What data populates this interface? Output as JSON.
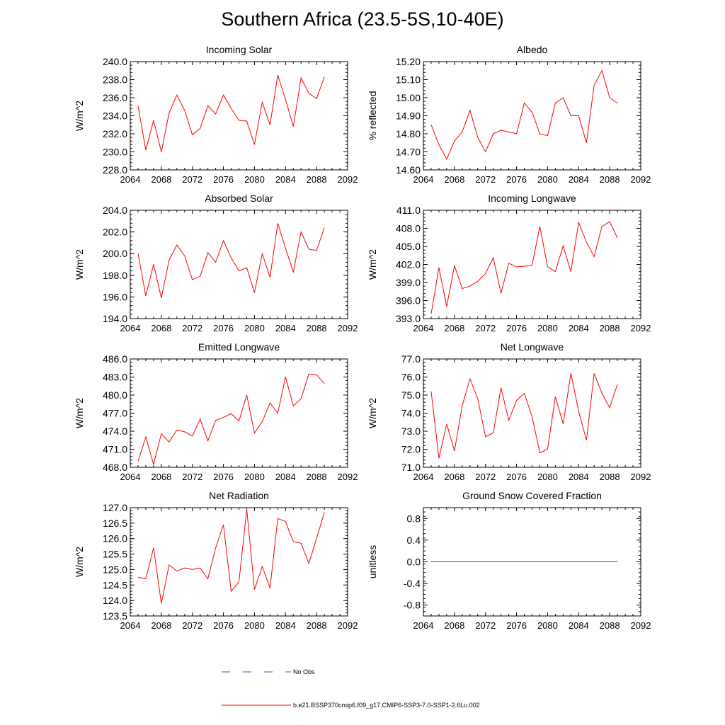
{
  "figure": {
    "title": "Southern Africa (23.5-5S,10-40E)",
    "series_color": "#ff0000",
    "legend": [
      {
        "label": "No Obs",
        "style": "dashed",
        "color": "#4b4bb4"
      },
      {
        "label": "b.e21.BSSP370cmip6.f09_g17.CMIP6-SSP3-7.0-SSP1-2.6Lu.002",
        "style": "solid",
        "color": "#ff0000"
      }
    ]
  },
  "chart_data": [
    {
      "type": "line",
      "title": "Incoming Solar",
      "xlabel": "",
      "ylabel": "W/m^2",
      "xlim": [
        2064,
        2092
      ],
      "xticks": [
        2064,
        2068,
        2072,
        2076,
        2080,
        2084,
        2088,
        2092
      ],
      "ylim": [
        228,
        240
      ],
      "yticks": [
        228,
        230,
        232,
        234,
        236,
        238,
        240
      ],
      "ytick_decimals": 1,
      "x": [
        2065,
        2066,
        2067,
        2068,
        2069,
        2070,
        2071,
        2072,
        2073,
        2074,
        2075,
        2076,
        2077,
        2078,
        2079,
        2080,
        2081,
        2082,
        2083,
        2084,
        2085,
        2086,
        2087,
        2088,
        2089
      ],
      "series": [
        {
          "values": [
            235.1,
            230.2,
            233.5,
            230.0,
            234.3,
            236.3,
            234.6,
            231.9,
            232.6,
            235.1,
            234.2,
            236.3,
            234.8,
            233.5,
            233.4,
            230.8,
            235.5,
            233.0,
            238.5,
            235.8,
            232.8,
            238.2,
            236.5,
            235.9,
            238.3
          ]
        }
      ]
    },
    {
      "type": "line",
      "title": "Albedo",
      "xlabel": "",
      "ylabel": "% reflected",
      "xlim": [
        2064,
        2092
      ],
      "xticks": [
        2064,
        2068,
        2072,
        2076,
        2080,
        2084,
        2088,
        2092
      ],
      "ylim": [
        14.6,
        15.2
      ],
      "yticks": [
        14.6,
        14.7,
        14.8,
        14.9,
        15.0,
        15.1,
        15.2
      ],
      "ytick_decimals": 2,
      "x": [
        2065,
        2066,
        2067,
        2068,
        2069,
        2070,
        2071,
        2072,
        2073,
        2074,
        2075,
        2076,
        2077,
        2078,
        2079,
        2080,
        2081,
        2082,
        2083,
        2084,
        2085,
        2086,
        2087,
        2088,
        2089
      ],
      "series": [
        {
          "values": [
            14.85,
            14.74,
            14.66,
            14.76,
            14.81,
            14.93,
            14.78,
            14.7,
            14.8,
            14.82,
            14.81,
            14.8,
            14.97,
            14.92,
            14.8,
            14.79,
            14.97,
            15.0,
            14.9,
            14.9,
            14.75,
            15.07,
            15.15,
            15.0,
            14.97
          ]
        }
      ]
    },
    {
      "type": "line",
      "title": "Absorbed Solar",
      "xlabel": "",
      "ylabel": "W/m^2",
      "xlim": [
        2064,
        2092
      ],
      "xticks": [
        2064,
        2068,
        2072,
        2076,
        2080,
        2084,
        2088,
        2092
      ],
      "ylim": [
        194,
        204
      ],
      "yticks": [
        194,
        196,
        198,
        200,
        202,
        204
      ],
      "ytick_decimals": 1,
      "x": [
        2065,
        2066,
        2067,
        2068,
        2069,
        2070,
        2071,
        2072,
        2073,
        2074,
        2075,
        2076,
        2077,
        2078,
        2079,
        2080,
        2081,
        2082,
        2083,
        2084,
        2085,
        2086,
        2087,
        2088,
        2089
      ],
      "series": [
        {
          "values": [
            200.0,
            196.1,
            199.0,
            195.9,
            199.4,
            200.8,
            199.8,
            197.6,
            197.9,
            200.1,
            199.2,
            201.2,
            199.6,
            198.4,
            198.7,
            196.4,
            200.0,
            197.8,
            202.8,
            200.5,
            198.3,
            202.0,
            200.4,
            200.3,
            202.4
          ]
        }
      ]
    },
    {
      "type": "line",
      "title": "Incoming Longwave",
      "xlabel": "",
      "ylabel": "W/m^2",
      "xlim": [
        2064,
        2092
      ],
      "xticks": [
        2064,
        2068,
        2072,
        2076,
        2080,
        2084,
        2088,
        2092
      ],
      "ylim": [
        393,
        411
      ],
      "yticks": [
        393,
        396,
        399,
        402,
        405,
        408,
        411
      ],
      "ytick_decimals": 1,
      "x": [
        2065,
        2066,
        2067,
        2068,
        2069,
        2070,
        2071,
        2072,
        2073,
        2074,
        2075,
        2076,
        2077,
        2078,
        2079,
        2080,
        2081,
        2082,
        2083,
        2084,
        2085,
        2086,
        2087,
        2088,
        2089
      ],
      "series": [
        {
          "values": [
            393.8,
            401.5,
            395.0,
            401.8,
            398.0,
            398.4,
            399.2,
            400.5,
            403.1,
            397.2,
            402.2,
            401.6,
            401.7,
            401.9,
            408.3,
            401.6,
            400.8,
            405.1,
            400.8,
            409.0,
            405.7,
            403.3,
            408.3,
            409.1,
            406.4
          ]
        }
      ]
    },
    {
      "type": "line",
      "title": "Emitted Longwave",
      "xlabel": "",
      "ylabel": "W/m^2",
      "xlim": [
        2064,
        2092
      ],
      "xticks": [
        2064,
        2068,
        2072,
        2076,
        2080,
        2084,
        2088,
        2092
      ],
      "ylim": [
        468,
        486
      ],
      "yticks": [
        468,
        471,
        474,
        477,
        480,
        483,
        486
      ],
      "ytick_decimals": 1,
      "x": [
        2065,
        2066,
        2067,
        2068,
        2069,
        2070,
        2071,
        2072,
        2073,
        2074,
        2075,
        2076,
        2077,
        2078,
        2079,
        2080,
        2081,
        2082,
        2083,
        2084,
        2085,
        2086,
        2087,
        2088,
        2089
      ],
      "series": [
        {
          "values": [
            469.0,
            473.0,
            468.5,
            473.6,
            472.2,
            474.2,
            473.9,
            473.2,
            476.0,
            472.4,
            475.8,
            476.3,
            476.9,
            475.7,
            480.0,
            473.7,
            475.6,
            478.7,
            477.0,
            483.0,
            478.2,
            479.4,
            483.5,
            483.4,
            481.9
          ]
        }
      ]
    },
    {
      "type": "line",
      "title": "Net Longwave",
      "xlabel": "",
      "ylabel": "W/m^2",
      "xlim": [
        2064,
        2092
      ],
      "xticks": [
        2064,
        2068,
        2072,
        2076,
        2080,
        2084,
        2088,
        2092
      ],
      "ylim": [
        71,
        77
      ],
      "yticks": [
        71,
        72,
        73,
        74,
        75,
        76,
        77
      ],
      "ytick_decimals": 1,
      "x": [
        2065,
        2066,
        2067,
        2068,
        2069,
        2070,
        2071,
        2072,
        2073,
        2074,
        2075,
        2076,
        2077,
        2078,
        2079,
        2080,
        2081,
        2082,
        2083,
        2084,
        2085,
        2086,
        2087,
        2088,
        2089
      ],
      "series": [
        {
          "values": [
            75.2,
            71.5,
            73.4,
            71.9,
            74.4,
            75.9,
            74.8,
            72.7,
            72.9,
            75.4,
            73.6,
            74.7,
            75.1,
            73.8,
            71.8,
            72.0,
            74.9,
            73.4,
            76.2,
            74.1,
            72.5,
            76.2,
            75.1,
            74.3,
            75.6
          ]
        }
      ]
    },
    {
      "type": "line",
      "title": "Net Radiation",
      "xlabel": "",
      "ylabel": "W/m^2",
      "xlim": [
        2064,
        2092
      ],
      "xticks": [
        2064,
        2068,
        2072,
        2076,
        2080,
        2084,
        2088,
        2092
      ],
      "ylim": [
        123.5,
        127.0
      ],
      "yticks": [
        123.5,
        124.0,
        124.5,
        125.0,
        125.5,
        126.0,
        126.5,
        127.0
      ],
      "ytick_decimals": 1,
      "x": [
        2065,
        2066,
        2067,
        2068,
        2069,
        2070,
        2071,
        2072,
        2073,
        2074,
        2075,
        2076,
        2077,
        2078,
        2079,
        2080,
        2081,
        2082,
        2083,
        2084,
        2085,
        2086,
        2087,
        2088,
        2089
      ],
      "series": [
        {
          "values": [
            124.75,
            124.7,
            125.7,
            123.9,
            125.15,
            124.95,
            125.05,
            125.0,
            125.05,
            124.7,
            125.7,
            126.45,
            124.3,
            124.6,
            126.95,
            124.35,
            125.1,
            124.4,
            126.65,
            126.55,
            125.9,
            125.85,
            125.2,
            126.0,
            126.85
          ]
        }
      ]
    },
    {
      "type": "line",
      "title": "Ground Snow Covered Fraction",
      "xlabel": "",
      "ylabel": "unitless",
      "xlim": [
        2064,
        2092
      ],
      "xticks": [
        2064,
        2068,
        2072,
        2076,
        2080,
        2084,
        2088,
        2092
      ],
      "ylim": [
        -1.0,
        1.0
      ],
      "yticks": [
        -0.8,
        -0.4,
        0.0,
        0.4,
        0.8
      ],
      "ytick_decimals": 1,
      "x": [
        2065,
        2066,
        2067,
        2068,
        2069,
        2070,
        2071,
        2072,
        2073,
        2074,
        2075,
        2076,
        2077,
        2078,
        2079,
        2080,
        2081,
        2082,
        2083,
        2084,
        2085,
        2086,
        2087,
        2088,
        2089
      ],
      "series": [
        {
          "values": [
            0,
            0,
            0,
            0,
            0,
            0,
            0,
            0,
            0,
            0,
            0,
            0,
            0,
            0,
            0,
            0,
            0,
            0,
            0,
            0,
            0,
            0,
            0,
            0,
            0
          ]
        }
      ]
    }
  ]
}
